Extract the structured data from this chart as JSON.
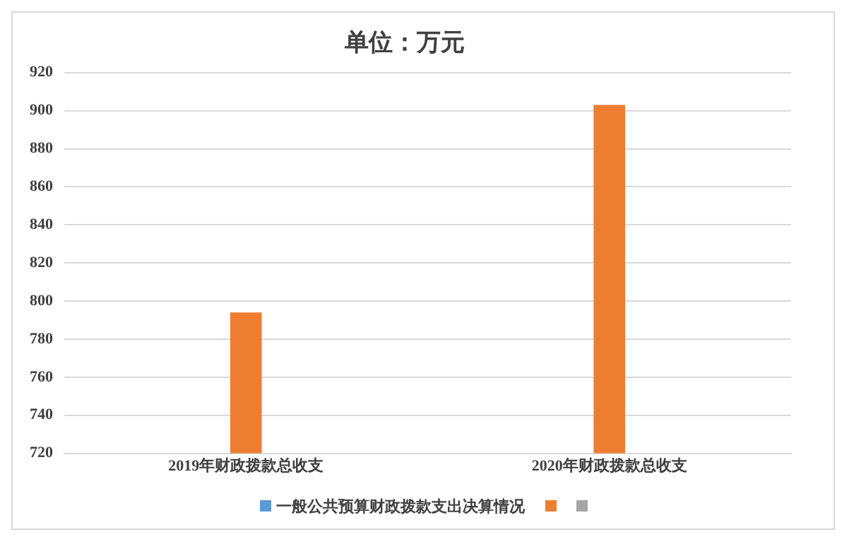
{
  "chart_data": {
    "type": "bar",
    "title": "单位：万元",
    "categories": [
      "2019年财政拨款总收支",
      "2020年财政拨款总收支"
    ],
    "series": [
      {
        "name": "一般公共预算财政拨款支出决算情况",
        "color": "#5b9bd5",
        "values": [
          null,
          null
        ]
      },
      {
        "color": "#ed7d31",
        "values": [
          794,
          903
        ]
      },
      {
        "color": "#a5a5a5",
        "values": [
          null,
          null
        ]
      }
    ],
    "ylim": [
      720,
      920
    ],
    "yticks": [
      720,
      740,
      760,
      780,
      800,
      820,
      840,
      860,
      880,
      900,
      920
    ],
    "grid": "y",
    "legend": "bottom"
  }
}
